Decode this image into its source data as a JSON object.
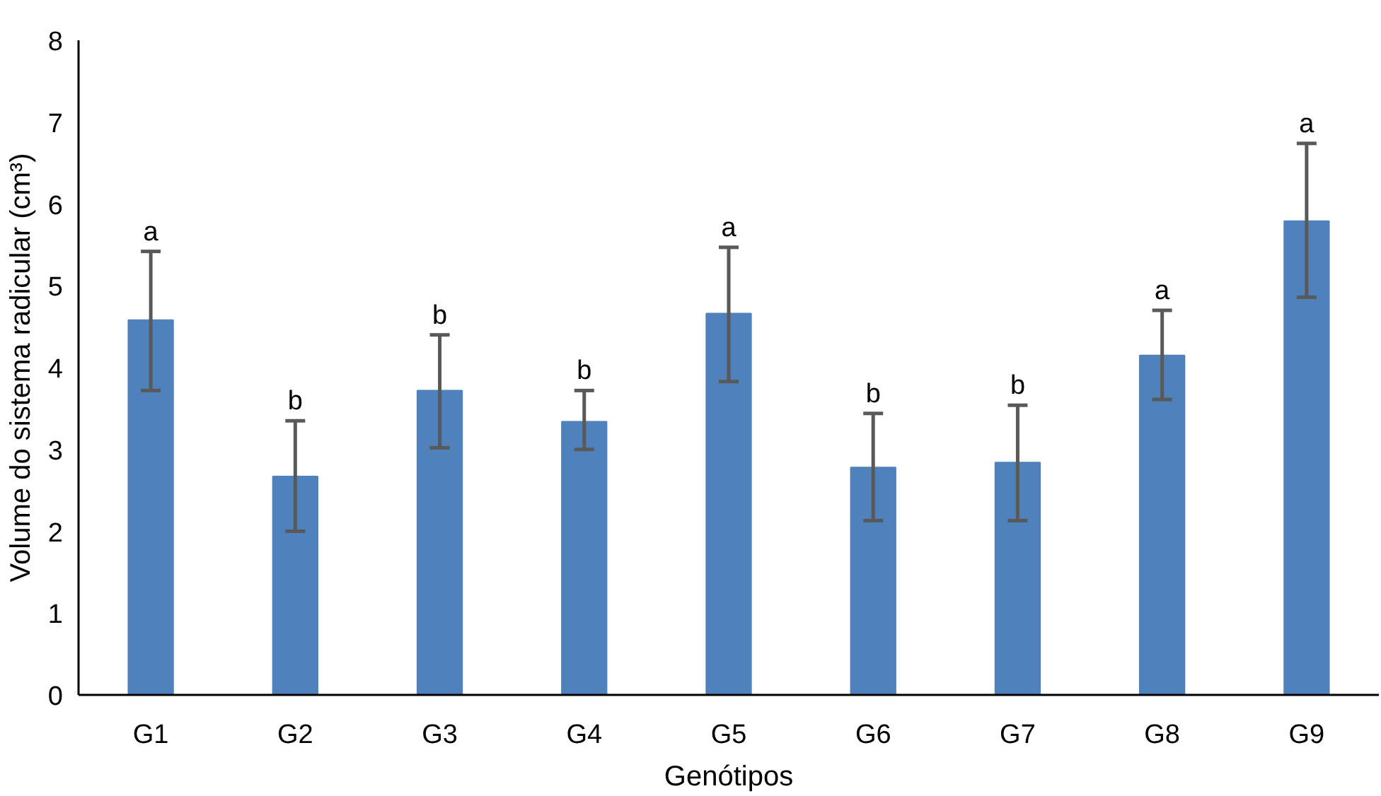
{
  "chart_data": {
    "type": "bar",
    "xlabel": "Genótipos",
    "ylabel": "Volume do sistema radicular (cm³)",
    "categories": [
      "G1",
      "G2",
      "G3",
      "G4",
      "G5",
      "G6",
      "G7",
      "G8",
      "G9"
    ],
    "values": [
      4.58,
      2.67,
      3.72,
      3.34,
      4.66,
      2.78,
      2.84,
      4.15,
      5.79
    ],
    "errors": [
      [
        3.72,
        5.42
      ],
      [
        2.0,
        3.35
      ],
      [
        3.02,
        4.4
      ],
      [
        3.0,
        3.72
      ],
      [
        3.83,
        5.47
      ],
      [
        2.13,
        3.44
      ],
      [
        2.13,
        3.54
      ],
      [
        3.61,
        4.7
      ],
      [
        4.86,
        6.74
      ]
    ],
    "color": "#4f81bd",
    "ylim": [
      0,
      8
    ],
    "yticks": [
      0,
      1,
      2,
      3,
      4,
      5,
      6,
      7,
      8
    ],
    "grid": false,
    "annotations": [
      {
        "text": "a",
        "x": "G1",
        "y": 5.42
      },
      {
        "text": "b",
        "x": "G2",
        "y": 3.35
      },
      {
        "text": "b",
        "x": "G3",
        "y": 4.4
      },
      {
        "text": "b",
        "x": "G4",
        "y": 3.72
      },
      {
        "text": "a",
        "x": "G5",
        "y": 5.47
      },
      {
        "text": "b",
        "x": "G6",
        "y": 3.44
      },
      {
        "text": "b",
        "x": "G7",
        "y": 3.54
      },
      {
        "text": "a",
        "x": "G8",
        "y": 4.7
      },
      {
        "text": "a",
        "x": "G9",
        "y": 6.74
      }
    ]
  }
}
